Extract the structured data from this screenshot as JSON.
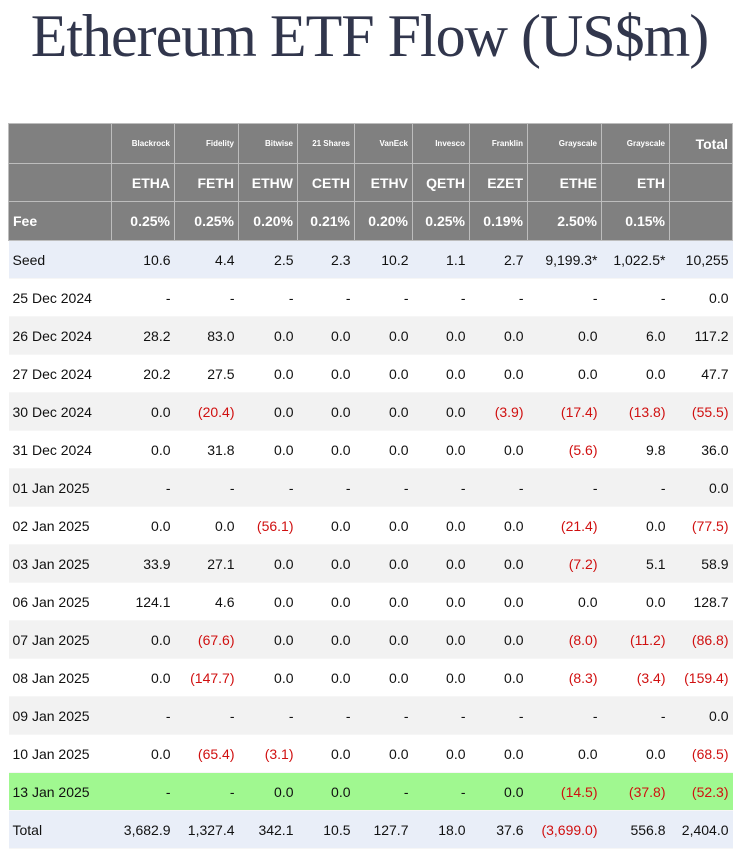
{
  "title": "Ethereum ETF Flow (US$m)",
  "table": {
    "issuers": [
      "Blackrock",
      "Fidelity",
      "Bitwise",
      "21 Shares",
      "VanEck",
      "Invesco",
      "Franklin",
      "Grayscale",
      "Grayscale"
    ],
    "total_header": "Total",
    "tickers": [
      "ETHA",
      "FETH",
      "ETHW",
      "CETH",
      "ETHV",
      "QETH",
      "EZET",
      "ETHE",
      "ETH"
    ],
    "fee_label": "Fee",
    "fees": [
      "0.25%",
      "0.25%",
      "0.20%",
      "0.21%",
      "0.20%",
      "0.25%",
      "0.19%",
      "2.50%",
      "0.15%"
    ],
    "rows": [
      [
        "Seed",
        "10.6",
        "4.4",
        "2.5",
        "2.3",
        "10.2",
        "1.1",
        "2.7",
        "9,199.3*",
        "1,022.5*",
        "10,255"
      ],
      [
        "25 Dec 2024",
        "-",
        "-",
        "-",
        "-",
        "-",
        "-",
        "-",
        "-",
        "-",
        "0.0"
      ],
      [
        "26 Dec 2024",
        "28.2",
        "83.0",
        "0.0",
        "0.0",
        "0.0",
        "0.0",
        "0.0",
        "0.0",
        "6.0",
        "117.2"
      ],
      [
        "27 Dec 2024",
        "20.2",
        "27.5",
        "0.0",
        "0.0",
        "0.0",
        "0.0",
        "0.0",
        "0.0",
        "0.0",
        "47.7"
      ],
      [
        "30 Dec 2024",
        "0.0",
        "(20.4)",
        "0.0",
        "0.0",
        "0.0",
        "0.0",
        "(3.9)",
        "(17.4)",
        "(13.8)",
        "(55.5)"
      ],
      [
        "31 Dec 2024",
        "0.0",
        "31.8",
        "0.0",
        "0.0",
        "0.0",
        "0.0",
        "0.0",
        "(5.6)",
        "9.8",
        "36.0"
      ],
      [
        "01 Jan 2025",
        "-",
        "-",
        "-",
        "-",
        "-",
        "-",
        "-",
        "-",
        "-",
        "0.0"
      ],
      [
        "02 Jan 2025",
        "0.0",
        "0.0",
        "(56.1)",
        "0.0",
        "0.0",
        "0.0",
        "0.0",
        "(21.4)",
        "0.0",
        "(77.5)"
      ],
      [
        "03 Jan 2025",
        "33.9",
        "27.1",
        "0.0",
        "0.0",
        "0.0",
        "0.0",
        "0.0",
        "(7.2)",
        "5.1",
        "58.9"
      ],
      [
        "06 Jan 2025",
        "124.1",
        "4.6",
        "0.0",
        "0.0",
        "0.0",
        "0.0",
        "0.0",
        "0.0",
        "0.0",
        "128.7"
      ],
      [
        "07 Jan 2025",
        "0.0",
        "(67.6)",
        "0.0",
        "0.0",
        "0.0",
        "0.0",
        "0.0",
        "(8.0)",
        "(11.2)",
        "(86.8)"
      ],
      [
        "08 Jan 2025",
        "0.0",
        "(147.7)",
        "0.0",
        "0.0",
        "0.0",
        "0.0",
        "0.0",
        "(8.3)",
        "(3.4)",
        "(159.4)"
      ],
      [
        "09 Jan 2025",
        "-",
        "-",
        "-",
        "-",
        "-",
        "-",
        "-",
        "-",
        "-",
        "0.0"
      ],
      [
        "10 Jan 2025",
        "0.0",
        "(65.4)",
        "(3.1)",
        "0.0",
        "0.0",
        "0.0",
        "0.0",
        "0.0",
        "0.0",
        "(68.5)"
      ],
      [
        "13 Jan 2025",
        "-",
        "-",
        "0.0",
        "0.0",
        "-",
        "-",
        "0.0",
        "(14.5)",
        "(37.8)",
        "(52.3)"
      ],
      [
        "Total",
        "3,682.9",
        "1,327.4",
        "342.1",
        "10.5",
        "127.7",
        "18.0",
        "37.6",
        "(3,699.0)",
        "556.8",
        "2,404.0"
      ]
    ]
  }
}
